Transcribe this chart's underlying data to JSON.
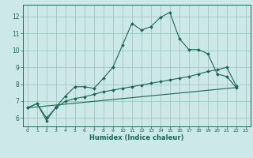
{
  "title": "",
  "xlabel": "Humidex (Indice chaleur)",
  "ylabel": "",
  "background_color": "#cce8e8",
  "grid_color": "#99ccbb",
  "line_color": "#1a6655",
  "xlim": [
    -0.5,
    23.5
  ],
  "ylim": [
    5.5,
    12.7
  ],
  "xticks": [
    0,
    1,
    2,
    3,
    4,
    5,
    6,
    7,
    8,
    9,
    10,
    11,
    12,
    13,
    14,
    15,
    16,
    17,
    18,
    19,
    20,
    21,
    22,
    23
  ],
  "yticks": [
    6,
    7,
    8,
    9,
    10,
    11,
    12
  ],
  "line1_x": [
    0,
    1,
    2,
    3,
    4,
    5,
    6,
    7,
    8,
    9,
    10,
    11,
    12,
    13,
    14,
    15,
    16,
    17,
    18,
    19,
    20,
    21,
    22
  ],
  "line1_y": [
    6.6,
    6.85,
    5.85,
    6.65,
    7.3,
    7.85,
    7.85,
    7.75,
    8.35,
    9.0,
    10.3,
    11.6,
    11.2,
    11.4,
    11.95,
    12.25,
    10.7,
    10.05,
    10.05,
    9.8,
    8.6,
    8.45,
    7.8
  ],
  "line2_x": [
    0,
    1,
    2,
    3,
    4,
    5,
    6,
    7,
    8,
    9,
    10,
    11,
    12,
    13,
    14,
    15,
    16,
    17,
    18,
    19,
    20,
    21,
    22
  ],
  "line2_y": [
    6.6,
    6.85,
    6.0,
    6.6,
    7.0,
    7.15,
    7.25,
    7.4,
    7.55,
    7.65,
    7.75,
    7.85,
    7.95,
    8.05,
    8.15,
    8.25,
    8.35,
    8.45,
    8.6,
    8.75,
    8.85,
    9.0,
    7.9
  ],
  "line3_x": [
    0,
    22
  ],
  "line3_y": [
    6.6,
    7.8
  ]
}
